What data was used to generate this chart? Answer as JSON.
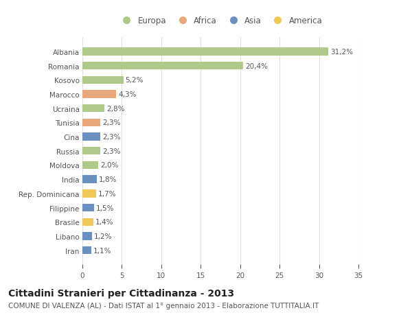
{
  "countries": [
    "Albania",
    "Romania",
    "Kosovo",
    "Marocco",
    "Ucraina",
    "Tunisia",
    "Cina",
    "Russia",
    "Moldova",
    "India",
    "Rep. Dominicana",
    "Filippine",
    "Brasile",
    "Libano",
    "Iran"
  ],
  "values": [
    31.2,
    20.4,
    5.2,
    4.3,
    2.8,
    2.3,
    2.3,
    2.3,
    2.0,
    1.8,
    1.7,
    1.5,
    1.4,
    1.2,
    1.1
  ],
  "continents": [
    "Europa",
    "Europa",
    "Europa",
    "Africa",
    "Europa",
    "Africa",
    "Asia",
    "Europa",
    "Europa",
    "Asia",
    "America",
    "Asia",
    "America",
    "Asia",
    "Asia"
  ],
  "continent_colors": {
    "Europa": "#aec98a",
    "Africa": "#e8a87c",
    "Asia": "#6b8fbe",
    "America": "#f0c85a"
  },
  "legend_order": [
    "Europa",
    "Africa",
    "Asia",
    "America"
  ],
  "title": "Cittadini Stranieri per Cittadinanza - 2013",
  "subtitle": "COMUNE DI VALENZA (AL) - Dati ISTAT al 1° gennaio 2013 - Elaborazione TUTTITALIA.IT",
  "xlim": [
    0,
    35
  ],
  "xticks": [
    0,
    5,
    10,
    15,
    20,
    25,
    30,
    35
  ],
  "background_color": "#ffffff",
  "grid_color": "#e0e0e0",
  "text_color": "#555555",
  "label_fontsize": 7.5,
  "tick_fontsize": 7.5,
  "title_fontsize": 10,
  "subtitle_fontsize": 7.5,
  "bar_height": 0.55
}
